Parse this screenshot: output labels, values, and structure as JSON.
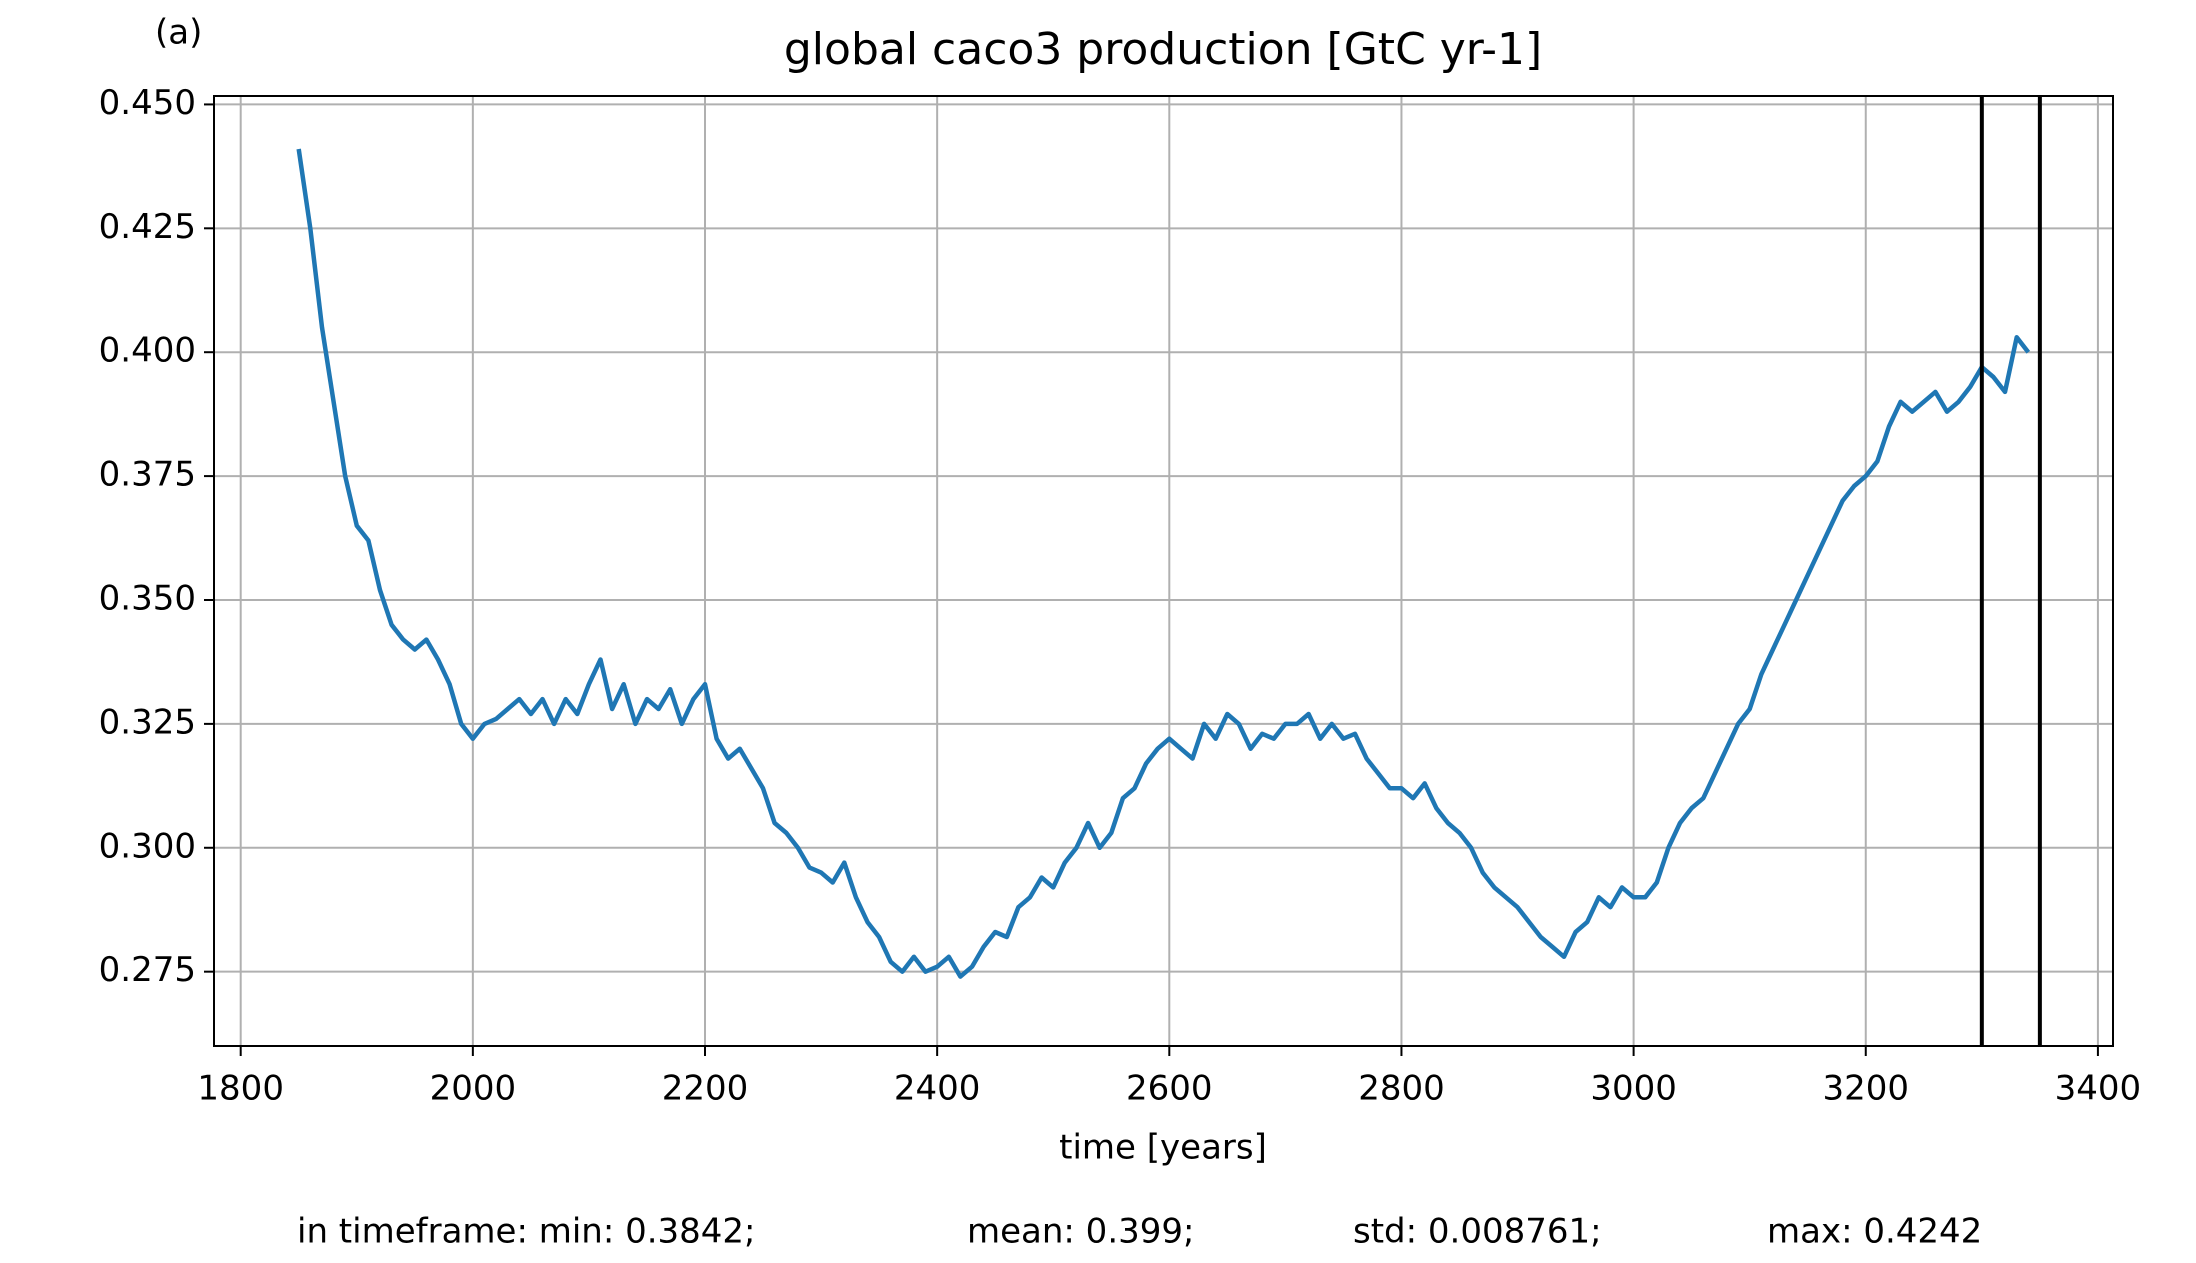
{
  "chart_data": {
    "type": "line",
    "panel_label": "(a)",
    "title": "global caco3 production [GtC yr-1]",
    "x_label": "time [years]",
    "stats": [
      "in timeframe: min: 0.3842;",
      "mean: 0.399;",
      "std: 0.008761;",
      "max: 0.4242"
    ],
    "xlim": [
      1777,
      3413
    ],
    "ylim": [
      0.26,
      0.4517
    ],
    "xticks": [
      1800,
      2000,
      2200,
      2400,
      2600,
      2800,
      3000,
      3200,
      3400
    ],
    "yticks": [
      0.275,
      {
        "value": 0.3,
        "label": "0.300"
      },
      0.325,
      {
        "value": 0.35,
        "label": "0.350"
      },
      0.375,
      {
        "value": 0.4,
        "label": "0.400"
      },
      0.425,
      {
        "value": 0.45,
        "label": "0.450"
      }
    ],
    "grid": true,
    "vlines": [
      3300,
      3350
    ],
    "vline_color": "#000000",
    "x": [
      1850,
      1860,
      1870,
      1880,
      1890,
      1900,
      1910,
      1920,
      1930,
      1940,
      1950,
      1960,
      1970,
      1980,
      1990,
      2000,
      2010,
      2020,
      2030,
      2040,
      2050,
      2060,
      2070,
      2080,
      2090,
      2100,
      2110,
      2120,
      2130,
      2140,
      2150,
      2160,
      2170,
      2180,
      2190,
      2200,
      2210,
      2220,
      2230,
      2240,
      2250,
      2260,
      2270,
      2280,
      2290,
      2300,
      2310,
      2320,
      2330,
      2340,
      2350,
      2360,
      2370,
      2380,
      2390,
      2400,
      2410,
      2420,
      2430,
      2440,
      2450,
      2460,
      2470,
      2480,
      2490,
      2500,
      2510,
      2520,
      2530,
      2540,
      2550,
      2560,
      2570,
      2580,
      2590,
      2600,
      2610,
      2620,
      2630,
      2640,
      2650,
      2660,
      2670,
      2680,
      2690,
      2700,
      2710,
      2720,
      2730,
      2740,
      2750,
      2760,
      2770,
      2780,
      2790,
      2800,
      2810,
      2820,
      2830,
      2840,
      2850,
      2860,
      2870,
      2880,
      2890,
      2900,
      2910,
      2920,
      2930,
      2940,
      2950,
      2960,
      2970,
      2980,
      2990,
      3000,
      3010,
      3020,
      3030,
      3040,
      3050,
      3060,
      3070,
      3080,
      3090,
      3100,
      3110,
      3120,
      3130,
      3140,
      3150,
      3160,
      3170,
      3180,
      3190,
      3200,
      3210,
      3220,
      3230,
      3240,
      3250,
      3260,
      3270,
      3280,
      3290,
      3300,
      3310,
      3320,
      3330,
      3340
    ],
    "series": [
      {
        "name": "caco3",
        "color": "#1f77b4",
        "values": [
          0.441,
          0.425,
          0.405,
          0.39,
          0.375,
          0.365,
          0.362,
          0.352,
          0.345,
          0.342,
          0.34,
          0.342,
          0.338,
          0.333,
          0.325,
          0.322,
          0.325,
          0.326,
          0.328,
          0.33,
          0.327,
          0.33,
          0.325,
          0.33,
          0.327,
          0.333,
          0.338,
          0.328,
          0.333,
          0.325,
          0.33,
          0.328,
          0.332,
          0.325,
          0.33,
          0.333,
          0.322,
          0.318,
          0.32,
          0.316,
          0.312,
          0.305,
          0.303,
          0.3,
          0.296,
          0.295,
          0.293,
          0.297,
          0.29,
          0.285,
          0.282,
          0.277,
          0.275,
          0.278,
          0.275,
          0.276,
          0.278,
          0.274,
          0.276,
          0.28,
          0.283,
          0.282,
          0.288,
          0.29,
          0.294,
          0.292,
          0.297,
          0.3,
          0.305,
          0.3,
          0.303,
          0.31,
          0.312,
          0.317,
          0.32,
          0.322,
          0.32,
          0.318,
          0.325,
          0.322,
          0.327,
          0.325,
          0.32,
          0.323,
          0.322,
          0.325,
          0.325,
          0.327,
          0.322,
          0.325,
          0.322,
          0.323,
          0.318,
          0.315,
          0.312,
          0.312,
          0.31,
          0.313,
          0.308,
          0.305,
          0.303,
          0.3,
          0.295,
          0.292,
          0.29,
          0.288,
          0.285,
          0.282,
          0.28,
          0.278,
          0.283,
          0.285,
          0.29,
          0.288,
          0.292,
          0.29,
          0.29,
          0.293,
          0.3,
          0.305,
          0.308,
          0.31,
          0.315,
          0.32,
          0.325,
          0.328,
          0.335,
          0.34,
          0.345,
          0.35,
          0.355,
          0.36,
          0.365,
          0.37,
          0.373,
          0.375,
          0.378,
          0.385,
          0.39,
          0.388,
          0.39,
          0.392,
          0.388,
          0.39,
          0.393,
          0.397,
          0.395,
          0.392,
          0.403,
          0.4
        ]
      }
    ]
  }
}
